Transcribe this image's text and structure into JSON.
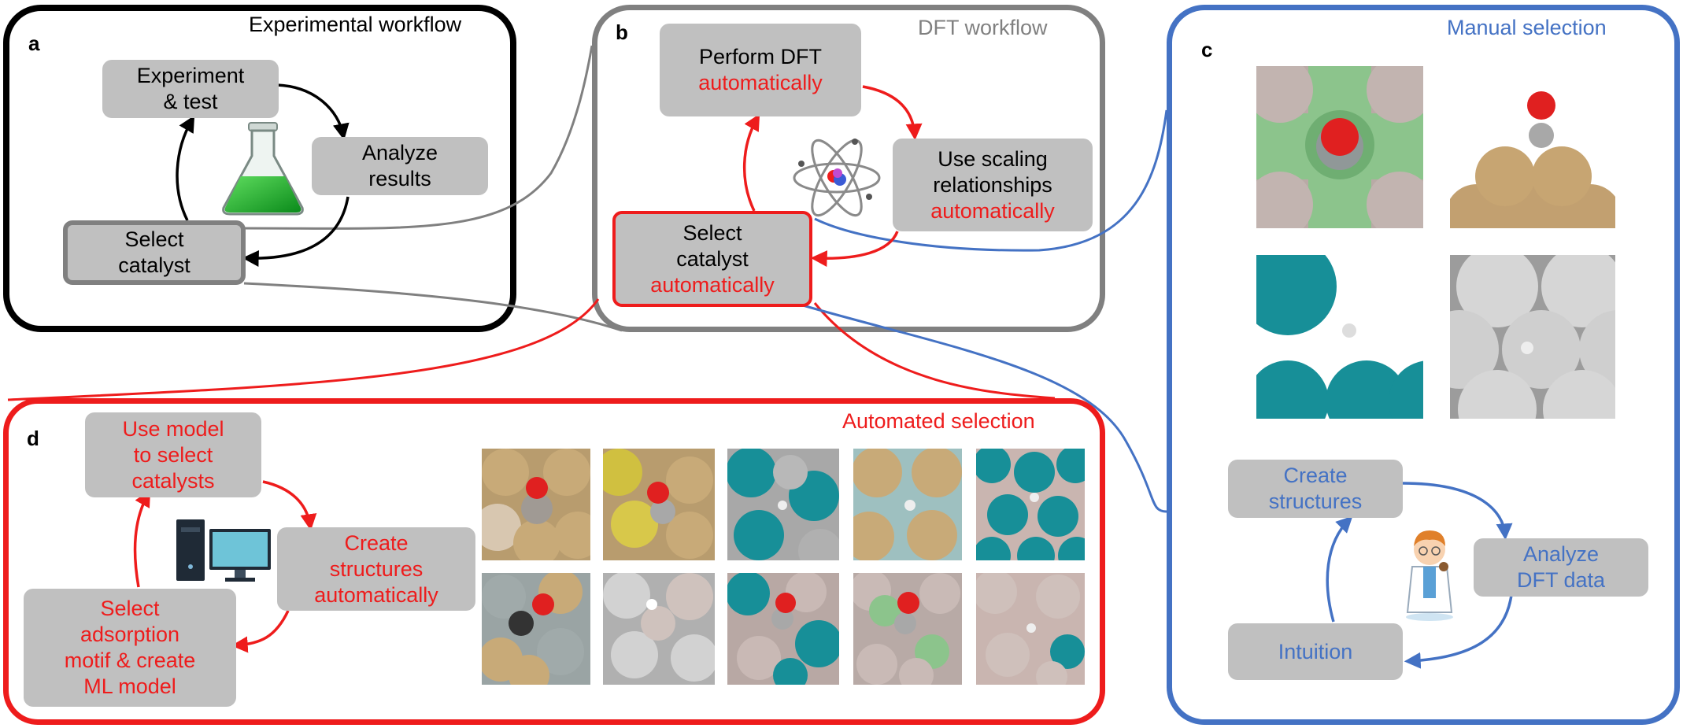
{
  "panels": {
    "a": {
      "label": "a",
      "title": "Experimental workflow"
    },
    "b": {
      "label": "b",
      "title": "DFT workflow"
    },
    "c": {
      "label": "c",
      "title": "Manual selection"
    },
    "d": {
      "label": "d",
      "title": "Automated selection"
    }
  },
  "a_boxes": {
    "experiment": {
      "line1": "Experiment",
      "line2": "& test"
    },
    "analyze": {
      "line1": "Analyze",
      "line2": "results"
    },
    "select": {
      "line1": "Select",
      "line2": "catalyst"
    }
  },
  "b_boxes": {
    "perform": {
      "line1": "Perform DFT",
      "line2": "automatically"
    },
    "scaling": {
      "line1": "Use scaling",
      "line2": "relationships",
      "line3": "automatically"
    },
    "select": {
      "line1": "Select",
      "line2": "catalyst",
      "line3": "automatically"
    }
  },
  "c_boxes": {
    "create": {
      "line1": "Create",
      "line2": "structures"
    },
    "analyze": {
      "line1": "Analyze",
      "line2": "DFT data"
    },
    "intuition": {
      "line1": "Intuition"
    }
  },
  "d_boxes": {
    "use_model": {
      "line1": "Use model",
      "line2": "to select",
      "line3": "catalysts"
    },
    "create": {
      "line1": "Create",
      "line2": "structures",
      "line3": "automatically"
    },
    "select": {
      "line1": "Select",
      "line2": "adsorption",
      "line3": "motif & create",
      "line4": "ML model"
    }
  },
  "colors": {
    "black": "#000000",
    "gray": "#808080",
    "red": "#ee1c1c",
    "blue": "#4472c4",
    "box": "#c0c0c0"
  },
  "icons": [
    "flask-icon",
    "atom-icon",
    "computer-icon",
    "scientist-icon",
    "molecule-structure-tile"
  ]
}
